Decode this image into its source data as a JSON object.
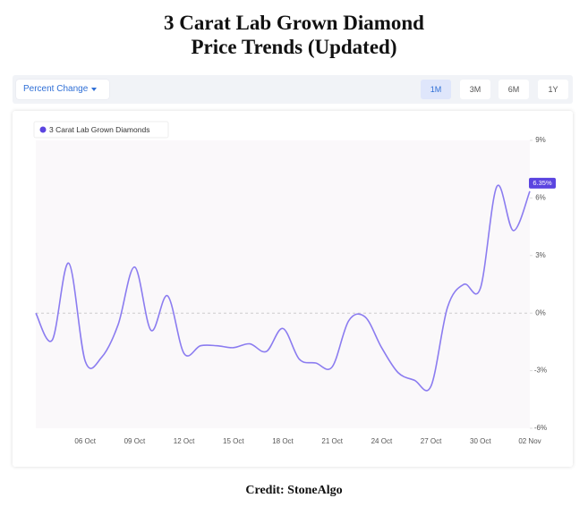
{
  "ui": {
    "title_line1": "3 Carat Lab Grown Diamond",
    "title_line2": "Price Trends (Updated)",
    "dropdown": "Percent Change",
    "ranges": [
      "1M",
      "3M",
      "6M",
      "1Y"
    ],
    "credit": "Credit: StoneAlgo"
  },
  "chart_data": {
    "type": "line",
    "categories": [
      null,
      null,
      null,
      "06 Oct",
      null,
      null,
      "09 Oct",
      null,
      null,
      "12 Oct",
      null,
      null,
      "15 Oct",
      null,
      null,
      "18 Oct",
      null,
      null,
      "21 Oct",
      null,
      null,
      "24 Oct",
      null,
      null,
      "27 Oct",
      null,
      null,
      "30 Oct",
      null,
      null,
      "02 Nov"
    ],
    "series": [
      {
        "name": "3 Carat Lab Grown Diamonds",
        "color": "#8b7cf0",
        "values": [
          0,
          -1.4,
          2.6,
          -2.5,
          -2.3,
          -0.6,
          2.4,
          -0.9,
          0.9,
          -2.1,
          -1.7,
          -1.7,
          -1.8,
          -1.6,
          -2.0,
          -0.8,
          -2.4,
          -2.6,
          -2.8,
          -0.4,
          -0.2,
          -1.8,
          -3.1,
          -3.5,
          -3.8,
          0.3,
          1.5,
          1.3,
          6.6,
          4.3,
          6.35
        ],
        "value_labels": [
          null,
          null,
          null,
          null,
          null,
          null,
          null,
          null,
          null,
          null,
          null,
          null,
          null,
          null,
          null,
          null,
          null,
          null,
          null,
          null,
          null,
          null,
          null,
          null,
          null,
          null,
          null,
          null,
          null,
          null,
          "6.35%"
        ]
      }
    ],
    "ylim": [
      -6,
      9
    ],
    "yticks": [
      {
        "value": -6,
        "label": "-6%"
      },
      {
        "value": -3,
        "label": "-3%"
      },
      {
        "value": 0,
        "label": "0%"
      },
      {
        "value": 3,
        "label": "3%"
      },
      {
        "value": 6,
        "label": "6%"
      },
      {
        "value": 9,
        "label": "9%"
      }
    ],
    "legend": "top-left"
  }
}
